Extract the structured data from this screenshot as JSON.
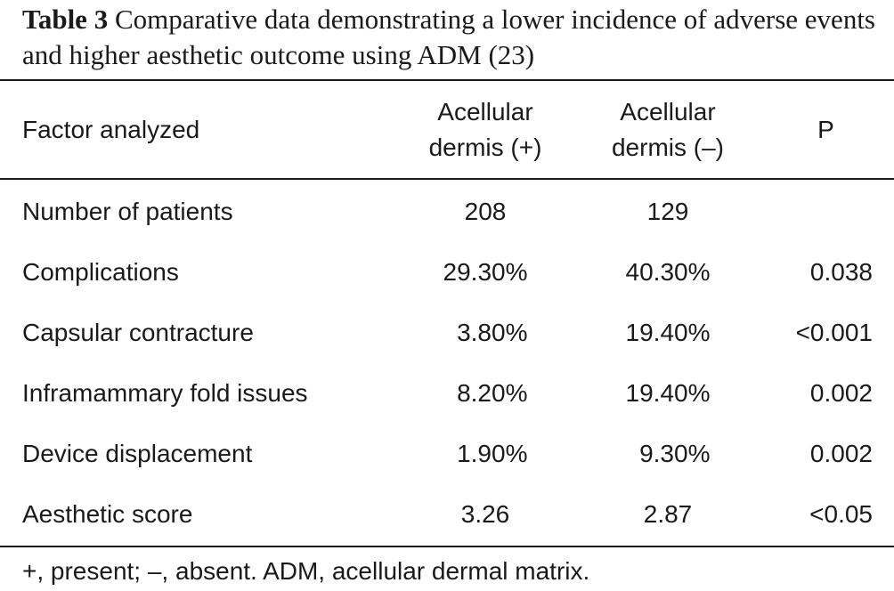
{
  "caption": {
    "label": "Table 3",
    "text": "Comparative data demonstrating a lower incidence of adverse events and higher aesthetic outcome using ADM (23)"
  },
  "table": {
    "headers": {
      "factor": "Factor analyzed",
      "adm_present_line1": "Acellular",
      "adm_present_line2": "dermis (+)",
      "adm_absent_line1": "Acellular",
      "adm_absent_line2": "dermis (–)",
      "p": "P"
    },
    "rows": [
      {
        "factor": "Number of patients",
        "plus": "208",
        "minus": "129",
        "p": ""
      },
      {
        "factor": "Complications",
        "plus": "29.30%",
        "minus": "40.30%",
        "p": "0.038"
      },
      {
        "factor": "Capsular contracture",
        "plus": "  3.80%",
        "minus": "19.40%",
        "p": "<0.001"
      },
      {
        "factor": "Inframammary fold issues",
        "plus": "  8.20%",
        "minus": "19.40%",
        "p": "0.002"
      },
      {
        "factor": "Device displacement",
        "plus": "  1.90%",
        "minus": "  9.30%",
        "p": "0.002"
      },
      {
        "factor": "Aesthetic score",
        "plus": "3.26",
        "minus": "2.87",
        "p": "<0.05"
      }
    ]
  },
  "footnote": "+, present; –, absent. ADM, acellular dermal matrix."
}
